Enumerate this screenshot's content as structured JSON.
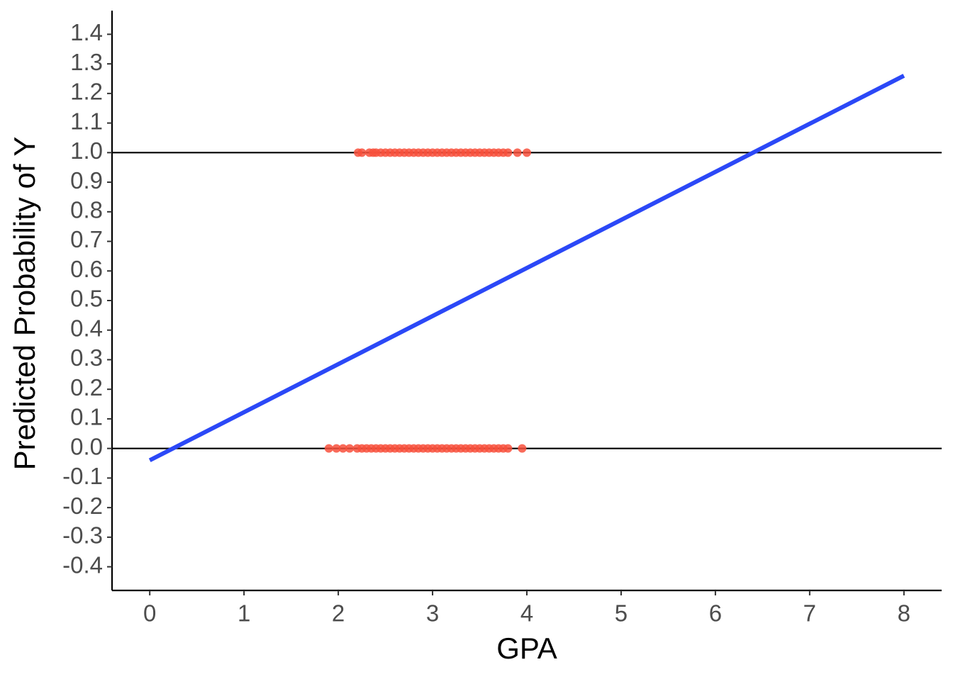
{
  "chart_data": {
    "type": "scatter",
    "x_label": "GPA",
    "y_label": "Predicted Probability of Y",
    "xlim": [
      -0.4,
      8.4
    ],
    "ylim": [
      -0.48,
      1.48
    ],
    "xticks": [
      0,
      1,
      2,
      3,
      4,
      5,
      6,
      7,
      8
    ],
    "yticks": [
      -0.4,
      -0.3,
      -0.2,
      -0.1,
      {
        "value": 0,
        "label": "0.0"
      },
      0.1,
      0.2,
      0.3,
      0.4,
      0.5,
      0.6,
      0.7,
      0.8,
      0.9,
      {
        "value": 1,
        "label": "1.0"
      },
      1.1,
      1.2,
      1.3,
      1.4
    ],
    "hlines": [
      0,
      1
    ],
    "points": {
      "color": "#f8503c",
      "x": [
        2.21,
        2.25,
        2.33,
        2.37,
        2.4,
        2.45,
        2.5,
        2.55,
        2.6,
        2.65,
        2.7,
        2.75,
        2.8,
        2.85,
        2.9,
        2.95,
        3.0,
        3.05,
        3.1,
        3.15,
        3.2,
        3.25,
        3.3,
        3.35,
        3.4,
        3.45,
        3.5,
        3.55,
        3.6,
        3.65,
        3.7,
        3.75,
        3.8,
        3.9,
        4.0,
        1.9,
        1.98,
        2.05,
        2.12,
        2.2,
        2.25,
        2.3,
        2.35,
        2.4,
        2.45,
        2.5,
        2.55,
        2.6,
        2.65,
        2.7,
        2.75,
        2.8,
        2.85,
        2.9,
        2.95,
        3.0,
        3.05,
        3.1,
        3.15,
        3.2,
        3.25,
        3.3,
        3.35,
        3.4,
        3.45,
        3.5,
        3.55,
        3.6,
        3.65,
        3.7,
        3.75,
        3.8,
        3.95
      ],
      "values": [
        1,
        1,
        1,
        1,
        1,
        1,
        1,
        1,
        1,
        1,
        1,
        1,
        1,
        1,
        1,
        1,
        1,
        1,
        1,
        1,
        1,
        1,
        1,
        1,
        1,
        1,
        1,
        1,
        1,
        1,
        1,
        1,
        1,
        1,
        1,
        0,
        0,
        0,
        0,
        0,
        0,
        0,
        0,
        0,
        0,
        0,
        0,
        0,
        0,
        0,
        0,
        0,
        0,
        0,
        0,
        0,
        0,
        0,
        0,
        0,
        0,
        0,
        0,
        0,
        0,
        0,
        0,
        0,
        0,
        0,
        0,
        0,
        0
      ]
    },
    "fit_line": {
      "color": "#2b48f7",
      "x": [
        0,
        8
      ],
      "values": [
        -0.04,
        1.26
      ]
    }
  }
}
